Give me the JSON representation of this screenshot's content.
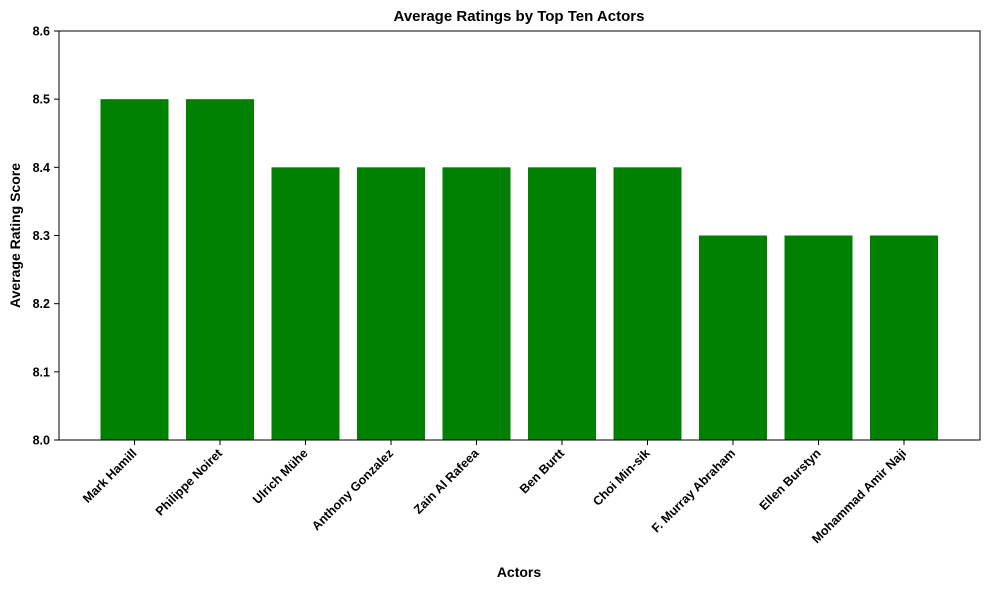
{
  "chart_data": {
    "type": "bar",
    "title": "Average Ratings by Top Ten Actors",
    "xlabel": "Actors",
    "ylabel": "Average Rating Score",
    "categories": [
      "Mark Hamill",
      "Philippe Noiret",
      "Ulrich Mühe",
      "Anthony Gonzalez",
      "Zain Al Rafeea",
      "Ben Burtt",
      "Choi Min-sik",
      "F. Murray Abraham",
      "Ellen Burstyn",
      "Mohammad Amir Naji"
    ],
    "values": [
      8.5,
      8.5,
      8.4,
      8.4,
      8.4,
      8.4,
      8.4,
      8.3,
      8.3,
      8.3
    ],
    "ylim": [
      8.0,
      8.6
    ],
    "yticks": [
      "8.0",
      "8.1",
      "8.2",
      "8.3",
      "8.4",
      "8.5",
      "8.6"
    ],
    "bar_color": "#008000",
    "grid": false,
    "legend": "none"
  }
}
